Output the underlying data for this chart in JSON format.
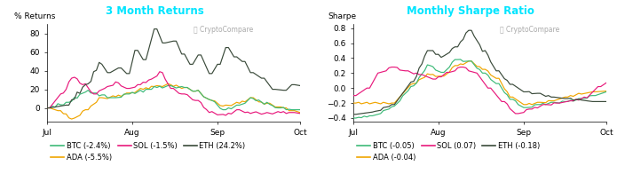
{
  "title_left": "3 Month Returns",
  "title_right": "Monthly Sharpe Ratio",
  "title_bg": "#003333",
  "title_color": "#00e5ff",
  "ylabel_left": "% Returns",
  "ylabel_right": "Sharpe",
  "bg_color": "#ffffff",
  "plot_bg": "#ffffff",
  "colors": {
    "BTC": "#3dba78",
    "ETH": "#3a4a3a",
    "ADA": "#f0a500",
    "SOL": "#e8197c"
  },
  "legend_left": [
    {
      "label": "BTC (-2.4%)",
      "color": "#3dba78"
    },
    {
      "label": "ADA (-5.5%)",
      "color": "#f0a500"
    },
    {
      "label": "SOL (-1.5%)",
      "color": "#e8197c"
    },
    {
      "label": "ETH (24.2%)",
      "color": "#3a4a3a"
    }
  ],
  "legend_right": [
    {
      "label": "BTC (-0.05)",
      "color": "#3dba78"
    },
    {
      "label": "ADA (-0.04)",
      "color": "#f0a500"
    },
    {
      "label": "SOL (0.07)",
      "color": "#e8197c"
    },
    {
      "label": "ETH (-0.18)",
      "color": "#3a4a3a"
    }
  ],
  "ylim_left": [
    -15,
    90
  ],
  "yticks_left": [
    0,
    20,
    40,
    60,
    80
  ],
  "ylim_right": [
    -0.45,
    0.85
  ],
  "yticks_right": [
    -0.4,
    -0.2,
    0.0,
    0.2,
    0.4,
    0.6,
    0.8
  ],
  "n_points": 93
}
